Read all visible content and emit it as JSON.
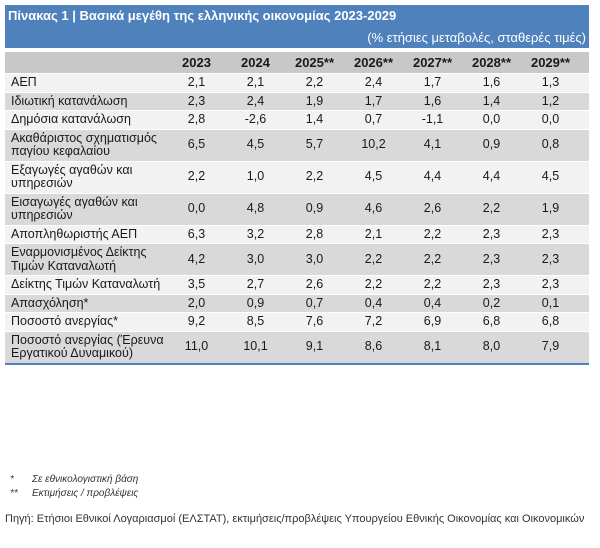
{
  "title": "Πίνακας 1 | Βασικά μεγέθη της ελληνικής οικονομίας 2023-2029",
  "subtitle": "(% ετήσιες μεταβολές, σταθερές τιμές)",
  "colors": {
    "header_blue": "#4f81bd",
    "header_gray": "#c8c8c8",
    "row_light": "#f2f2f2",
    "row_dark": "#d9d9d9"
  },
  "columns": [
    "",
    "2023",
    "2024",
    "2025**",
    "2026**",
    "2027**",
    "2028**",
    "2029**"
  ],
  "rows": [
    {
      "label": "ΑΕΠ",
      "values": [
        "2,1",
        "2,1",
        "2,2",
        "2,4",
        "1,7",
        "1,6",
        "1,3"
      ]
    },
    {
      "label": "Ιδιωτική κατανάλωση",
      "values": [
        "2,3",
        "2,4",
        "1,9",
        "1,7",
        "1,6",
        "1,4",
        "1,2"
      ]
    },
    {
      "label": "Δημόσια κατανάλωση",
      "values": [
        "2,8",
        "-2,6",
        "1,4",
        "0,7",
        "-1,1",
        "0,0",
        "0,0"
      ]
    },
    {
      "label": "Ακαθάριστος σχηματισμός παγίου κεφαλαίου",
      "values": [
        "6,5",
        "4,5",
        "5,7",
        "10,2",
        "4,1",
        "0,9",
        "0,8"
      ]
    },
    {
      "label": "Εξαγωγές αγαθών και υπηρεσιών",
      "values": [
        "2,2",
        "1,0",
        "2,2",
        "4,5",
        "4,4",
        "4,4",
        "4,5"
      ]
    },
    {
      "label": "Εισαγωγές αγαθών και υπηρεσιών",
      "values": [
        "0,0",
        "4,8",
        "0,9",
        "4,6",
        "2,6",
        "2,2",
        "1,9"
      ]
    },
    {
      "label": "Αποπληθωριστής ΑΕΠ",
      "values": [
        "6,3",
        "3,2",
        "2,8",
        "2,1",
        "2,2",
        "2,3",
        "2,3"
      ]
    },
    {
      "label": "Εναρμονισμένος Δείκτης Τιμών Καταναλωτή",
      "values": [
        "4,2",
        "3,0",
        "3,0",
        "2,2",
        "2,2",
        "2,3",
        "2,3"
      ]
    },
    {
      "label": "Δείκτης Τιμών Καταναλωτή",
      "values": [
        "3,5",
        "2,7",
        "2,6",
        "2,2",
        "2,2",
        "2,3",
        "2,3"
      ]
    },
    {
      "label": "Απασχόληση*",
      "values": [
        "2,0",
        "0,9",
        "0,7",
        "0,4",
        "0,4",
        "0,2",
        "0,1"
      ]
    },
    {
      "label": "Ποσοστό ανεργίας*",
      "values": [
        "9,2",
        "8,5",
        "7,6",
        "7,2",
        "6,9",
        "6,8",
        "6,8"
      ]
    },
    {
      "label": "Ποσοστό ανεργίας (Έρευνα Εργατικού Δυναμικού)",
      "values": [
        "11,0",
        "10,1",
        "9,1",
        "8,6",
        "8,1",
        "8,0",
        "7,9"
      ]
    }
  ],
  "notes": [
    {
      "mark": "*",
      "text": "Σε εθνικολογιστική βάση"
    },
    {
      "mark": "**",
      "text": "Εκτιμήσεις / προβλέψεις"
    }
  ],
  "source": "Πηγή: Ετήσιοι Εθνικοί Λογαριασμοί (ΕΛΣΤΑΤ), εκτιμήσεις/προβλέψεις Υπουργείου Εθνικής Οικονομίας και Οικονομικών"
}
